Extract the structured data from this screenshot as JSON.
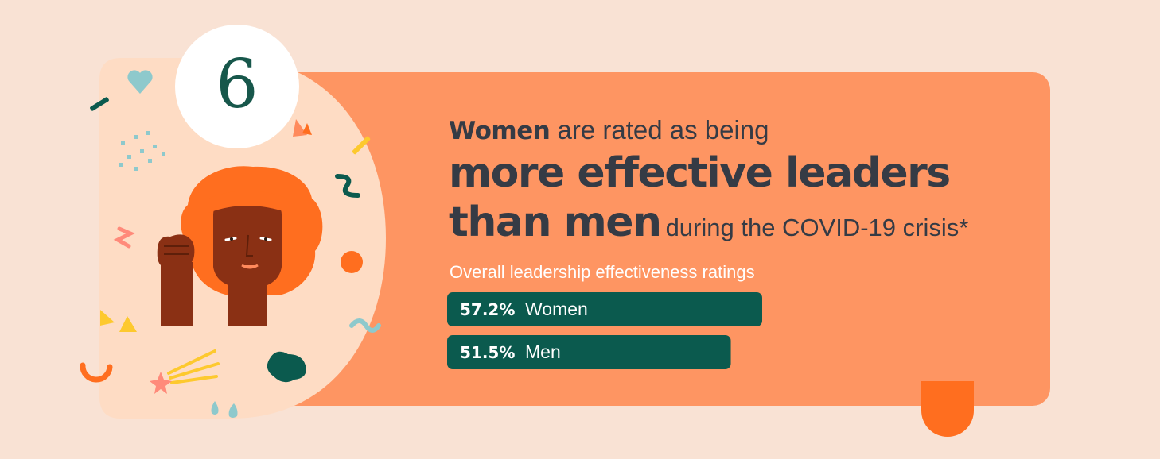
{
  "step_number": "6",
  "headline": {
    "lead_bold": "Women",
    "lead_rest": " are rated as being",
    "big_1": "more effective leaders",
    "big_2": "than men",
    "tail": "during the COVID-19 crisis*"
  },
  "colors": {
    "background": "#f9e2d4",
    "card": "#fe9562",
    "bar": "#0b5a4e",
    "text_dark": "#353b45",
    "accent_orange": "#ff6e1f"
  },
  "chart_data": {
    "type": "bar",
    "orientation": "horizontal",
    "title": "Overall leadership effectiveness ratings",
    "categories": [
      "Women",
      "Men"
    ],
    "values": [
      57.2,
      51.5
    ],
    "value_labels": [
      "57.2%",
      "51.5%"
    ],
    "unit": "%",
    "xlim": [
      0,
      100
    ],
    "grid": false,
    "legend": "none"
  }
}
